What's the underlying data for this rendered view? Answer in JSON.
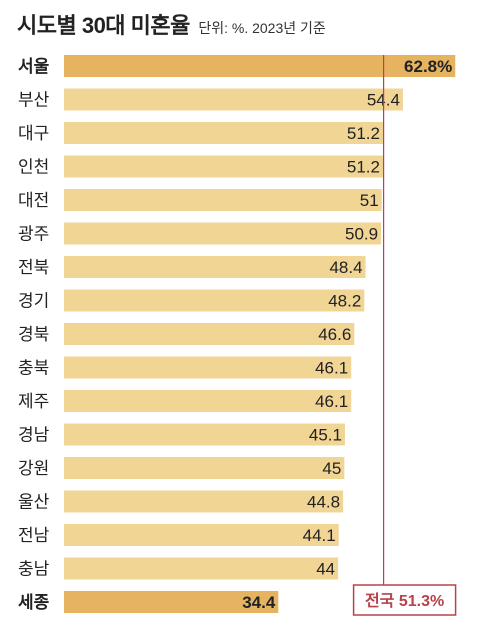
{
  "header": {
    "title": "시도별 30대 미혼율",
    "subtitle": "단위: %. 2023년 기준"
  },
  "chart_data": {
    "type": "bar",
    "orientation": "horizontal",
    "title": "시도별 30대 미혼율",
    "subtitle": "단위: %. 2023년 기준",
    "unit": "%",
    "categories": [
      "서울",
      "부산",
      "대구",
      "인천",
      "대전",
      "광주",
      "전북",
      "경기",
      "경북",
      "충북",
      "제주",
      "경남",
      "강원",
      "울산",
      "전남",
      "충남",
      "세종"
    ],
    "values": [
      62.8,
      54.4,
      51.2,
      51.2,
      51,
      50.9,
      48.4,
      48.2,
      46.6,
      46.1,
      46.1,
      45.1,
      45,
      44.8,
      44.1,
      44,
      34.4
    ],
    "value_labels": [
      "62.8%",
      "54.4",
      "51.2",
      "51.2",
      "51",
      "50.9",
      "48.4",
      "48.2",
      "46.6",
      "46.1",
      "46.1",
      "45.1",
      "45",
      "44.8",
      "44.1",
      "44",
      "34.4"
    ],
    "highlighted": [
      "서울",
      "세종"
    ],
    "reference_line": {
      "label": "전국 51.3%",
      "value": 51.3
    },
    "colors": {
      "bar": "#f1d595",
      "bar_highlight": "#e6b460",
      "reference_line": "#b8424a",
      "text": "#222222"
    }
  }
}
